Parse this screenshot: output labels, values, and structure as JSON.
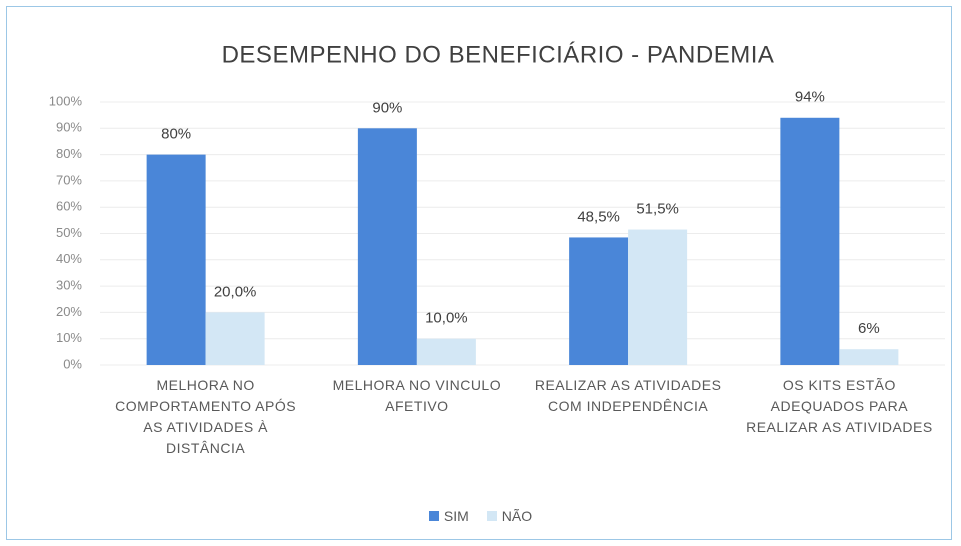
{
  "chart_data": {
    "type": "bar",
    "title": "DESEMPENHO DO BENEFICIÁRIO - PANDEMIA",
    "categories": [
      "MELHORA NO COMPORTAMENTO APÓS AS ATIVIDADES À DISTÂNCIA",
      "MELHORA NO VINCULO AFETIVO",
      "REALIZAR AS ATIVIDADES COM INDEPENDÊNCIA",
      "OS KITS ESTÃO ADEQUADOS PARA REALIZAR AS ATIVIDADES"
    ],
    "series": [
      {
        "name": "SIM",
        "color": "#4a86d8",
        "values": [
          80,
          90,
          48.5,
          94
        ],
        "value_labels": [
          "80%",
          "90%",
          "48,5%",
          "94%"
        ]
      },
      {
        "name": "NÃO",
        "color": "#d3e7f5",
        "values": [
          20,
          10,
          51.5,
          6
        ],
        "value_labels": [
          "20,0%",
          "10,0%",
          "51,5%",
          "6%"
        ]
      }
    ],
    "ylim": [
      0,
      100
    ],
    "yticks": [
      {
        "value": 0,
        "label": "0%"
      },
      {
        "value": 10,
        "label": "10%"
      },
      {
        "value": 20,
        "label": "20%"
      },
      {
        "value": 30,
        "label": "30%"
      },
      {
        "value": 40,
        "label": "40%"
      },
      {
        "value": 50,
        "label": "50%"
      },
      {
        "value": 60,
        "label": "60%"
      },
      {
        "value": 70,
        "label": "70%"
      },
      {
        "value": 80,
        "label": "80%"
      },
      {
        "value": 90,
        "label": "90%"
      },
      {
        "value": 100,
        "label": "100%"
      }
    ],
    "grid": true,
    "legend": "bottom"
  }
}
